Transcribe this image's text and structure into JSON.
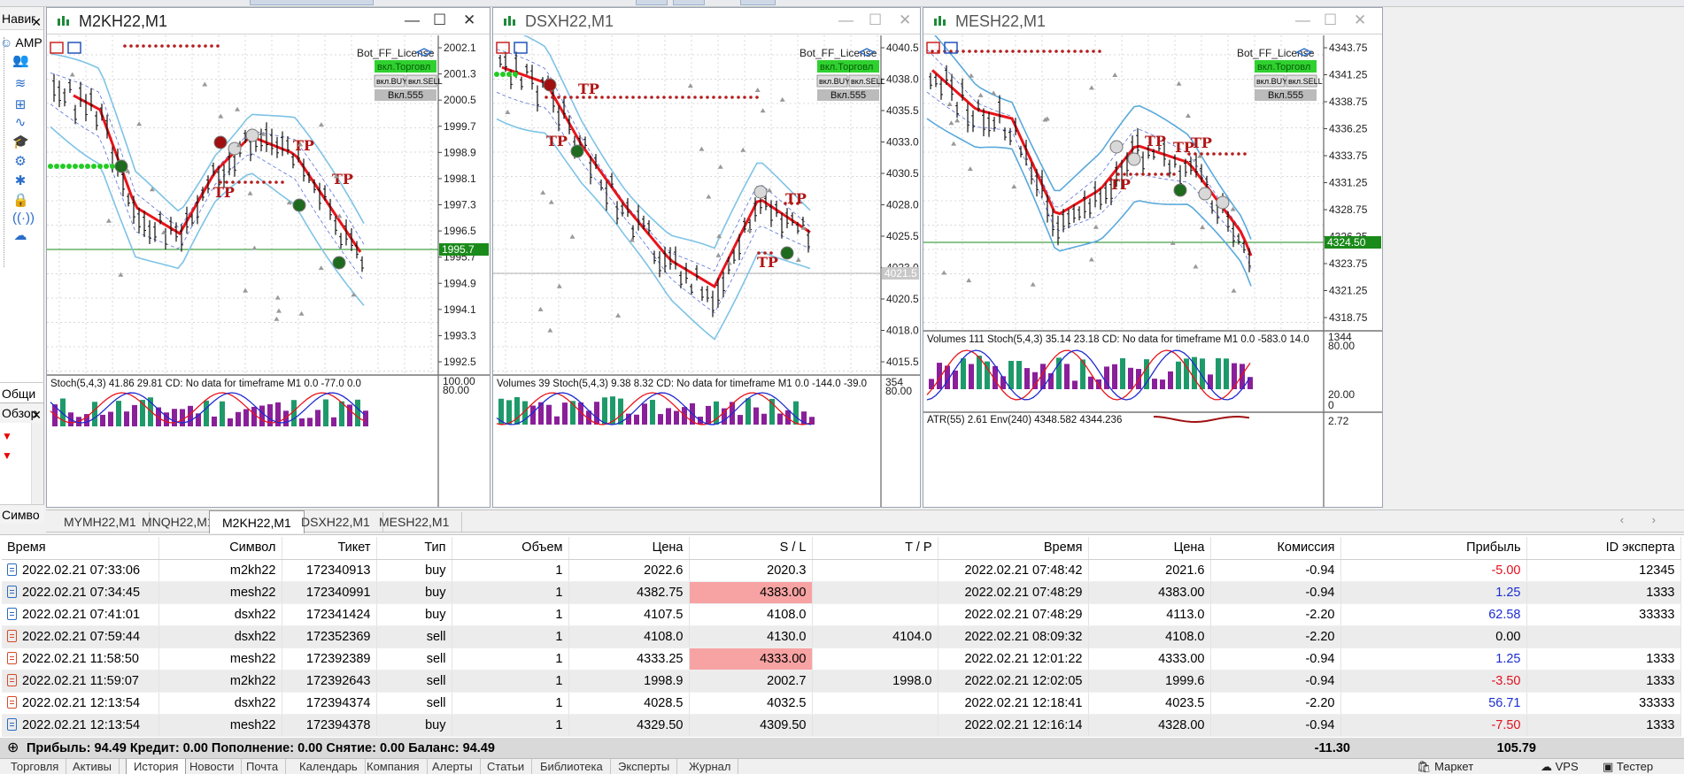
{
  "navigator": {
    "title": "Навиг",
    "top_item": "AMP",
    "general_tab": "Общи",
    "overview_title": "Обзор",
    "symbols_title": "Симво"
  },
  "charts": [
    {
      "symbol": "M2KH22,M1",
      "active": true,
      "license": "Bot_FF_License",
      "btn_trade": "вкл.Торговл",
      "btn_buy": "вкл.BUY",
      "btn_sell": "вкл.SELL",
      "btn_555": "Вкл.555",
      "price_labels": [
        "2002.1",
        "2001.3",
        "2000.5",
        "1999.7",
        "1998.9",
        "1998.1",
        "1997.3",
        "1996.5",
        "1995.7",
        "1994.9",
        "1994.1",
        "1993.3",
        "1992.5"
      ],
      "current_price": "1995.7",
      "indicator": "Stoch(5,4,3) 41.86 29.81 CD: No data for timeframe M1 0.0 -77.0 0.0",
      "ind_levels": [
        "100.00",
        "80.00"
      ],
      "tp_labels": [
        "TP",
        "TP",
        "TP"
      ],
      "colors": {
        "ma": "#e8141a",
        "band": "#7ec3e6"
      }
    },
    {
      "symbol": "DSXH22,M1",
      "active": false,
      "license": "Bot_FF_License",
      "btn_trade": "вкл.Торговл",
      "btn_buy": "вкл.BUY",
      "btn_sell": "вкл.SELL",
      "btn_555": "Вкл.555",
      "price_labels": [
        "4040.5",
        "4038.0",
        "4035.5",
        "4033.0",
        "4030.5",
        "4028.0",
        "4025.5",
        "4023.0",
        "4020.5",
        "4018.0",
        "4015.5"
      ],
      "current_price": "4021.5",
      "indicator": "Volumes 39 Stoch(5,4,3) 9.38 8.32 CD: No data for timeframe M1 0.0 -144.0 -39.0",
      "ind_levels": [
        "354",
        "80.00"
      ],
      "tp_labels": [
        "TP",
        "TP",
        "TP",
        "TP"
      ],
      "colors": {
        "ma": "#e8141a",
        "band": "#7ec3e6"
      }
    },
    {
      "symbol": "MESH22,M1",
      "active": false,
      "license": "Bot_FF_License",
      "btn_trade": "вкл.Торговл",
      "btn_buy": "вкл.BUY",
      "btn_sell": "вкл.SELL",
      "btn_555": "Вкл.555",
      "price_labels": [
        "4343.75",
        "4341.25",
        "4338.75",
        "4336.25",
        "4333.75",
        "4331.25",
        "4328.75",
        "4326.25",
        "4323.75",
        "4321.25",
        "4318.75"
      ],
      "current_price": "4324.50",
      "indicator": "Volumes 111 Stoch(5,4,3) 35.14 23.18 CD: No data for timeframe M1 0.0 -583.0 14.0",
      "ind_levels": [
        "1344",
        "80.00",
        "20.00",
        "0"
      ],
      "indicator2": "ATR(55) 2.61 Env(240) 4348.582 4344.236",
      "ind2_level": "2.72",
      "tp_labels": [
        "TP",
        "TP",
        "TP",
        "TP"
      ],
      "colors": {
        "ma": "#e8141a",
        "band": "#5aa9dc"
      }
    }
  ],
  "chart_tabs": [
    "MYMH22,M1",
    "MNQH22,M1",
    "M2KH22,M1",
    "DSXH22,M1",
    "MESH22,M1"
  ],
  "chart_tab_active": "M2KH22,M1",
  "history": {
    "columns": [
      "Время",
      "Символ",
      "Тикет",
      "Тип",
      "Объем",
      "Цена",
      "S / L",
      "T / P",
      "Время",
      "Цена",
      "Комиссия",
      "Прибыль",
      "ID эксперта"
    ],
    "rows": [
      {
        "open_time": "2022.02.21 07:33:06",
        "symbol": "m2kh22",
        "ticket": "172340913",
        "type": "buy",
        "volume": "1",
        "price": "2022.6",
        "sl": "2020.3",
        "tp": "",
        "close_time": "2022.02.21 07:48:42",
        "close_price": "2021.6",
        "commission": "-0.94",
        "profit": "-5.00",
        "expert": "12345"
      },
      {
        "open_time": "2022.02.21 07:34:45",
        "symbol": "mesh22",
        "ticket": "172340991",
        "type": "buy",
        "volume": "1",
        "price": "4382.75",
        "sl": "4383.00",
        "tp": "",
        "close_time": "2022.02.21 07:48:29",
        "close_price": "4383.00",
        "commission": "-0.94",
        "profit": "1.25",
        "expert": "1333"
      },
      {
        "open_time": "2022.02.21 07:41:01",
        "symbol": "dsxh22",
        "ticket": "172341424",
        "type": "buy",
        "volume": "1",
        "price": "4107.5",
        "sl": "4108.0",
        "tp": "",
        "close_time": "2022.02.21 07:48:29",
        "close_price": "4113.0",
        "commission": "-2.20",
        "profit": "62.58",
        "expert": "33333"
      },
      {
        "open_time": "2022.02.21 07:59:44",
        "symbol": "dsxh22",
        "ticket": "172352369",
        "type": "sell",
        "volume": "1",
        "price": "4108.0",
        "sl": "4130.0",
        "tp": "4104.0",
        "close_time": "2022.02.21 08:09:32",
        "close_price": "4108.0",
        "commission": "-2.20",
        "profit": "0.00",
        "expert": ""
      },
      {
        "open_time": "2022.02.21 11:58:50",
        "symbol": "mesh22",
        "ticket": "172392389",
        "type": "sell",
        "volume": "1",
        "price": "4333.25",
        "sl": "4333.00",
        "tp": "",
        "close_time": "2022.02.21 12:01:22",
        "close_price": "4333.00",
        "commission": "-0.94",
        "profit": "1.25",
        "expert": "1333"
      },
      {
        "open_time": "2022.02.21 11:59:07",
        "symbol": "m2kh22",
        "ticket": "172392643",
        "type": "sell",
        "volume": "1",
        "price": "1998.9",
        "sl": "2002.7",
        "tp": "1998.0",
        "close_time": "2022.02.21 12:02:05",
        "close_price": "1999.6",
        "commission": "-0.94",
        "profit": "-3.50",
        "expert": "1333"
      },
      {
        "open_time": "2022.02.21 12:13:54",
        "symbol": "dsxh22",
        "ticket": "172394374",
        "type": "sell",
        "volume": "1",
        "price": "4028.5",
        "sl": "4032.5",
        "tp": "",
        "close_time": "2022.02.21 12:18:41",
        "close_price": "4023.5",
        "commission": "-2.20",
        "profit": "56.71",
        "expert": "33333"
      },
      {
        "open_time": "2022.02.21 12:13:54",
        "symbol": "mesh22",
        "ticket": "172394378",
        "type": "buy",
        "volume": "1",
        "price": "4329.50",
        "sl": "4309.50",
        "tp": "",
        "close_time": "2022.02.21 12:16:14",
        "close_price": "4328.00",
        "commission": "-0.94",
        "profit": "-7.50",
        "expert": "1333"
      }
    ],
    "highlight_sl_rows": [
      1,
      4
    ],
    "summary": {
      "text": "Прибыль: 94.49  Кредит: 0.00  Пополнение: 0.00  Снятие: 0.00  Баланс: 94.49",
      "commission": "-11.30",
      "profit": "105.79"
    }
  },
  "bottom_tabs": [
    "Торговля",
    "Активы",
    "История",
    "Новости",
    "Почта",
    "Календарь",
    "Компания",
    "Алерты",
    "Статьи",
    "Библиотека",
    "Эксперты",
    "Журнал"
  ],
  "bottom_tab_active": "История",
  "status": {
    "market": "Маркет",
    "vps": "VPS",
    "tester": "Тестер"
  }
}
